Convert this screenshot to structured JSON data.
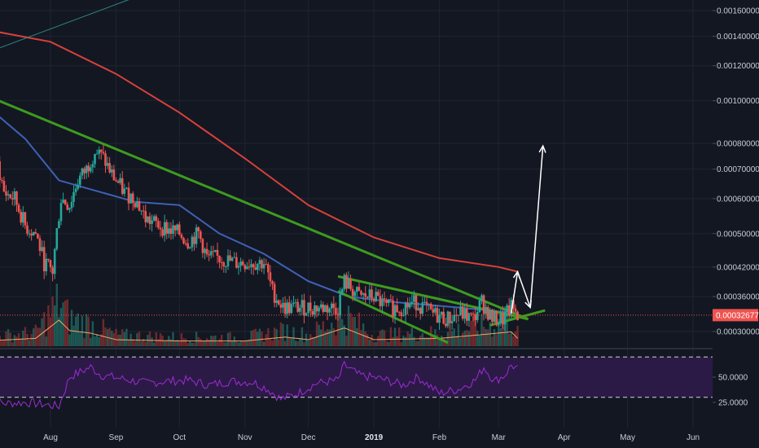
{
  "chart_data": {
    "type": "candlestick",
    "scale": "log",
    "colors": {
      "background": "#131722",
      "grid": "#1f2432",
      "up": "#26a69a",
      "down": "#ef5350",
      "ma200": "#d8413a",
      "ma50": "#3f61b6",
      "trendline": "#3e9b1e",
      "projection": "#ffffff",
      "rsi": "#9d2bd4",
      "rsi_band": "#2b1a46",
      "volume_ma": "#f4a76a",
      "teal_line": "#2b8c86",
      "last_price": "#ef5350"
    },
    "price_axis_labels": [
      "0.00160000",
      "0.00140000",
      "0.00120000",
      "0.00100000",
      "0.00080000",
      "0.00070000",
      "0.00060000",
      "0.00050000",
      "0.00042000",
      "0.00036000",
      "0.00030000"
    ],
    "price_axis_values": [
      0.0016,
      0.0014,
      0.0012,
      0.001,
      0.0008,
      0.0007,
      0.0006,
      0.0005,
      0.00042,
      0.00036,
      0.0003
    ],
    "last_price_label": "0.00032677",
    "last_price": 0.00032677,
    "time_axis": [
      {
        "label": "Aug",
        "date": "2018-08-01",
        "bold": false
      },
      {
        "label": "Sep",
        "date": "2018-09-01",
        "bold": false
      },
      {
        "label": "Oct",
        "date": "2018-10-01",
        "bold": false
      },
      {
        "label": "Nov",
        "date": "2018-11-01",
        "bold": false
      },
      {
        "label": "Dec",
        "date": "2018-12-01",
        "bold": false
      },
      {
        "label": "2019",
        "date": "2019-01-01",
        "bold": true
      },
      {
        "label": "Feb",
        "date": "2019-02-01",
        "bold": false
      },
      {
        "label": "Mar",
        "date": "2019-03-01",
        "bold": false
      },
      {
        "label": "Apr",
        "date": "2019-04-01",
        "bold": false
      },
      {
        "label": "May",
        "date": "2019-05-01",
        "bold": false
      },
      {
        "label": "Jun",
        "date": "2019-06-01",
        "bold": false
      }
    ],
    "rsi_axis_labels": [
      "50.0000",
      "25.0000"
    ],
    "rsi_axis_values": [
      50,
      25
    ],
    "rsi_band": [
      30,
      70
    ],
    "price_anchors": [
      [
        "2018-07-01",
        0.00081
      ],
      [
        "2018-07-05",
        0.00078
      ],
      [
        "2018-07-10",
        0.00062
      ],
      [
        "2018-07-15",
        0.0006
      ],
      [
        "2018-07-20",
        0.00052
      ],
      [
        "2018-07-25",
        0.0005
      ],
      [
        "2018-07-29",
        0.00043
      ],
      [
        "2018-08-02",
        0.00041
      ],
      [
        "2018-08-06",
        0.0006
      ],
      [
        "2018-08-10",
        0.00058
      ],
      [
        "2018-08-14",
        0.00066
      ],
      [
        "2018-08-18",
        0.0007
      ],
      [
        "2018-08-22",
        0.00077
      ],
      [
        "2018-08-26",
        0.00074
      ],
      [
        "2018-08-30",
        0.00068
      ],
      [
        "2018-09-05",
        0.00062
      ],
      [
        "2018-09-10",
        0.0006
      ],
      [
        "2018-09-15",
        0.00054
      ],
      [
        "2018-09-22",
        0.00052
      ],
      [
        "2018-10-01",
        0.0005
      ],
      [
        "2018-10-05",
        0.00048
      ],
      [
        "2018-10-10",
        0.0005
      ],
      [
        "2018-10-14",
        0.00044
      ],
      [
        "2018-10-20",
        0.00044
      ],
      [
        "2018-10-27",
        0.00043
      ],
      [
        "2018-11-03",
        0.00043
      ],
      [
        "2018-11-10",
        0.00043
      ],
      [
        "2018-11-14",
        0.00037
      ],
      [
        "2018-11-19",
        0.00034
      ],
      [
        "2018-11-26",
        0.00034
      ],
      [
        "2018-12-05",
        0.00034
      ],
      [
        "2018-12-10",
        0.00034
      ],
      [
        "2018-12-15",
        0.00034
      ],
      [
        "2018-12-18",
        0.00039
      ],
      [
        "2018-12-25",
        0.00036
      ],
      [
        "2019-01-01",
        0.00036
      ],
      [
        "2019-01-07",
        0.00034
      ],
      [
        "2019-01-14",
        0.00034
      ],
      [
        "2019-01-21",
        0.00035
      ],
      [
        "2019-01-28",
        0.00033
      ],
      [
        "2019-02-05",
        0.00032
      ],
      [
        "2019-02-11",
        0.00033
      ],
      [
        "2019-02-17",
        0.00032
      ],
      [
        "2019-02-21",
        0.00035
      ],
      [
        "2019-02-26",
        0.00032
      ],
      [
        "2019-03-03",
        0.00032
      ],
      [
        "2019-03-07",
        0.00034
      ],
      [
        "2019-03-10",
        0.00033
      ]
    ],
    "ma200_anchors": [
      [
        "2018-07-01",
        0.00145
      ],
      [
        "2018-08-01",
        0.00136
      ],
      [
        "2018-09-01",
        0.00115
      ],
      [
        "2018-10-01",
        0.00094
      ],
      [
        "2018-11-01",
        0.00074
      ],
      [
        "2018-12-01",
        0.00058
      ],
      [
        "2019-01-01",
        0.00049
      ],
      [
        "2019-02-01",
        0.00044
      ],
      [
        "2019-03-01",
        0.00042
      ],
      [
        "2019-03-10",
        0.00041
      ]
    ],
    "ma50_anchors": [
      [
        "2018-07-01",
        0.00098
      ],
      [
        "2018-07-20",
        0.00082
      ],
      [
        "2018-08-05",
        0.00066
      ],
      [
        "2018-08-20",
        0.00063
      ],
      [
        "2018-09-10",
        0.00059
      ],
      [
        "2018-10-01",
        0.00058
      ],
      [
        "2018-10-20",
        0.0005
      ],
      [
        "2018-11-10",
        0.00045
      ],
      [
        "2018-12-01",
        0.00039
      ],
      [
        "2018-12-20",
        0.00036
      ],
      [
        "2019-01-10",
        0.00035
      ],
      [
        "2019-02-10",
        0.00034
      ],
      [
        "2019-03-10",
        0.00033
      ]
    ],
    "trendlines": [
      {
        "name": "upper-trendline",
        "from": [
          "2018-07-01",
          0.00103
        ],
        "to": [
          "2019-03-15",
          0.00032
        ]
      },
      {
        "name": "triangle-upper",
        "from": [
          "2018-12-15",
          0.0004
        ],
        "to": [
          "2019-03-15",
          0.00032
        ]
      },
      {
        "name": "triangle-lower",
        "from": [
          "2018-12-15",
          0.00037
        ],
        "to": [
          "2019-02-05",
          0.000283
        ]
      },
      {
        "name": "triangle-base",
        "from": [
          "2019-02-25",
          0.00031
        ],
        "to": [
          "2019-03-23",
          0.000335
        ]
      },
      {
        "name": "teal-line",
        "from": [
          "2018-07-01",
          0.00128
        ],
        "to": [
          "2018-09-15",
          0.00175
        ]
      }
    ],
    "projection_path": [
      [
        "2019-03-07",
        0.00033
      ],
      [
        "2019-03-10",
        0.00041
      ],
      [
        "2019-03-16",
        0.00034
      ],
      [
        "2019-03-22",
        0.00079
      ]
    ],
    "rsi_anchors": [
      [
        "2018-07-01",
        30
      ],
      [
        "2018-07-10",
        24
      ],
      [
        "2018-07-20",
        25
      ],
      [
        "2018-07-29",
        23
      ],
      [
        "2018-08-05",
        21
      ],
      [
        "2018-08-10",
        50
      ],
      [
        "2018-08-15",
        55
      ],
      [
        "2018-08-20",
        60
      ],
      [
        "2018-08-25",
        52
      ],
      [
        "2018-09-05",
        48
      ],
      [
        "2018-09-15",
        44
      ],
      [
        "2018-09-25",
        46
      ],
      [
        "2018-10-05",
        47
      ],
      [
        "2018-10-15",
        42
      ],
      [
        "2018-10-25",
        46
      ],
      [
        "2018-11-05",
        45
      ],
      [
        "2018-11-12",
        38
      ],
      [
        "2018-11-18",
        28
      ],
      [
        "2018-11-26",
        34
      ],
      [
        "2018-12-05",
        44
      ],
      [
        "2018-12-15",
        47
      ],
      [
        "2018-12-18",
        62
      ],
      [
        "2018-12-25",
        52
      ],
      [
        "2019-01-05",
        48
      ],
      [
        "2019-01-15",
        42
      ],
      [
        "2019-01-22",
        50
      ],
      [
        "2019-02-01",
        34
      ],
      [
        "2019-02-10",
        38
      ],
      [
        "2019-02-18",
        47
      ],
      [
        "2019-02-22",
        60
      ],
      [
        "2019-02-27",
        46
      ],
      [
        "2019-03-04",
        52
      ],
      [
        "2019-03-07",
        62
      ],
      [
        "2019-03-10",
        58
      ]
    ],
    "volume_anchors": [
      [
        "2018-07-01",
        0.2
      ],
      [
        "2018-07-25",
        0.3
      ],
      [
        "2018-08-05",
        1.0
      ],
      [
        "2018-08-10",
        0.6
      ],
      [
        "2018-08-20",
        0.5
      ],
      [
        "2018-09-01",
        0.25
      ],
      [
        "2018-10-01",
        0.2
      ],
      [
        "2018-11-01",
        0.2
      ],
      [
        "2018-11-20",
        0.35
      ],
      [
        "2018-12-01",
        0.25
      ],
      [
        "2018-12-18",
        0.7
      ],
      [
        "2019-01-01",
        0.25
      ],
      [
        "2019-02-01",
        0.3
      ],
      [
        "2019-02-22",
        0.45
      ],
      [
        "2019-03-07",
        0.55
      ],
      [
        "2019-03-10",
        0.3
      ]
    ]
  }
}
